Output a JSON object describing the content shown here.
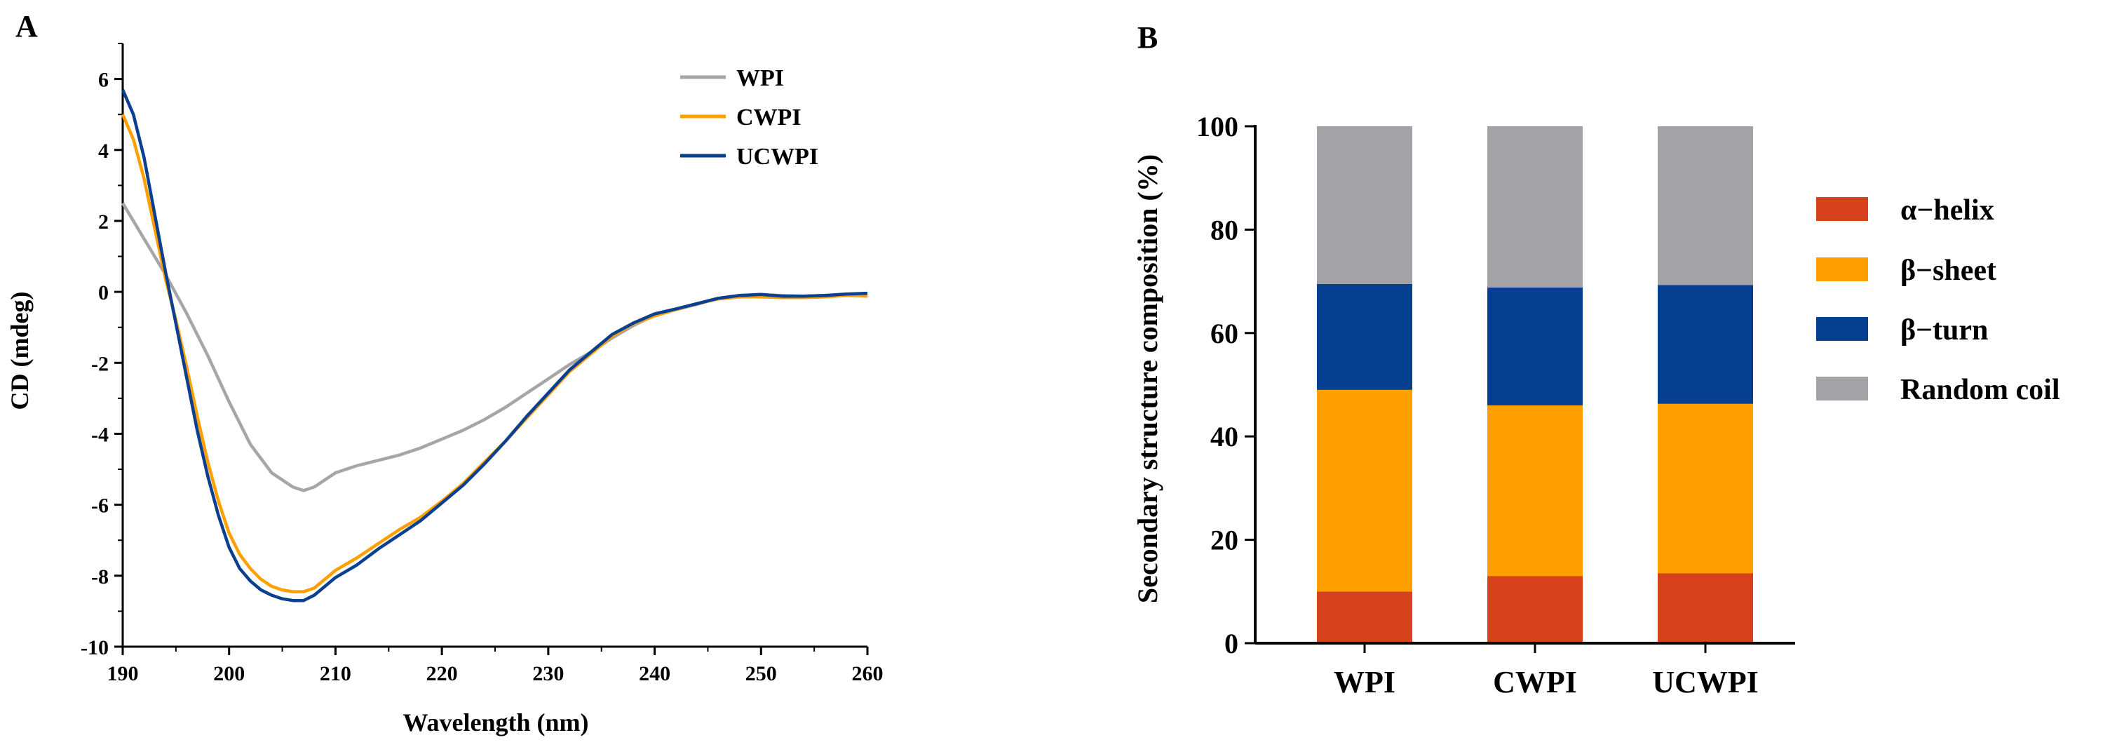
{
  "chart_data": [
    {
      "panel_label": "A",
      "type": "line",
      "xlabel": "Wavelength (nm)",
      "ylabel": "CD (mdeg)",
      "xlim": [
        190,
        260
      ],
      "ylim": [
        -10,
        7
      ],
      "x_ticks": [
        "190",
        "200",
        "210",
        "220",
        "230",
        "240",
        "250",
        "260"
      ],
      "y_ticks": [
        "-10",
        "-8",
        "-6",
        "-4",
        "-2",
        "0",
        "2",
        "4",
        "6"
      ],
      "legend_position": "top-right",
      "series": [
        {
          "name": "WPI",
          "color": "#a6a6a6",
          "x": [
            190,
            192,
            194,
            196,
            198,
            200,
            202,
            204,
            206,
            207,
            208,
            210,
            212,
            214,
            216,
            218,
            220,
            222,
            224,
            226,
            228,
            230,
            232,
            234,
            236,
            238,
            240,
            242,
            244,
            246,
            248,
            250,
            252,
            254,
            256,
            258,
            260
          ],
          "y": [
            2.5,
            1.5,
            0.5,
            -0.6,
            -1.8,
            -3.1,
            -4.3,
            -5.1,
            -5.5,
            -5.6,
            -5.5,
            -5.1,
            -4.9,
            -4.75,
            -4.6,
            -4.4,
            -4.15,
            -3.9,
            -3.6,
            -3.25,
            -2.85,
            -2.45,
            -2.05,
            -1.7,
            -1.3,
            -0.95,
            -0.65,
            -0.5,
            -0.35,
            -0.18,
            -0.1,
            -0.08,
            -0.1,
            -0.12,
            -0.1,
            -0.08,
            -0.08
          ]
        },
        {
          "name": "CWPI",
          "color": "#ff9f00",
          "x": [
            190,
            191,
            192,
            193,
            194,
            195,
            196,
            197,
            198,
            199,
            200,
            201,
            202,
            203,
            204,
            205,
            206,
            207,
            208,
            209,
            210,
            212,
            214,
            216,
            218,
            220,
            222,
            224,
            226,
            228,
            230,
            232,
            234,
            236,
            238,
            240,
            242,
            244,
            246,
            248,
            250,
            252,
            254,
            256,
            258,
            260
          ],
          "y": [
            5.0,
            4.3,
            3.2,
            1.8,
            0.4,
            -0.8,
            -2.1,
            -3.5,
            -4.8,
            -5.9,
            -6.8,
            -7.4,
            -7.8,
            -8.1,
            -8.3,
            -8.4,
            -8.45,
            -8.45,
            -8.35,
            -8.1,
            -7.85,
            -7.5,
            -7.1,
            -6.7,
            -6.35,
            -5.9,
            -5.4,
            -4.8,
            -4.2,
            -3.55,
            -2.9,
            -2.25,
            -1.75,
            -1.25,
            -0.9,
            -0.68,
            -0.5,
            -0.33,
            -0.2,
            -0.14,
            -0.14,
            -0.16,
            -0.16,
            -0.14,
            -0.1,
            -0.12
          ]
        },
        {
          "name": "UCWPI",
          "color": "#0b3f8f",
          "x": [
            190,
            191,
            192,
            193,
            194,
            195,
            196,
            197,
            198,
            199,
            200,
            201,
            202,
            203,
            204,
            205,
            206,
            207,
            208,
            209,
            210,
            212,
            214,
            216,
            218,
            220,
            222,
            224,
            226,
            228,
            230,
            232,
            234,
            236,
            238,
            240,
            242,
            244,
            246,
            248,
            250,
            252,
            254,
            256,
            258,
            260
          ],
          "y": [
            5.7,
            5.0,
            3.8,
            2.2,
            0.6,
            -0.9,
            -2.4,
            -3.9,
            -5.2,
            -6.3,
            -7.2,
            -7.8,
            -8.15,
            -8.4,
            -8.55,
            -8.65,
            -8.7,
            -8.7,
            -8.55,
            -8.3,
            -8.05,
            -7.7,
            -7.25,
            -6.85,
            -6.45,
            -5.95,
            -5.45,
            -4.85,
            -4.2,
            -3.5,
            -2.85,
            -2.2,
            -1.7,
            -1.2,
            -0.88,
            -0.62,
            -0.48,
            -0.33,
            -0.18,
            -0.1,
            -0.07,
            -0.12,
            -0.12,
            -0.1,
            -0.06,
            -0.04
          ]
        }
      ]
    },
    {
      "panel_label": "B",
      "type": "bar",
      "stacked": true,
      "ylabel": "Secondary structure composition (%)",
      "xlabel": "",
      "ylim": [
        0,
        100
      ],
      "y_ticks": [
        "0",
        "20",
        "40",
        "60",
        "80",
        "100"
      ],
      "categories": [
        "WPI",
        "CWPI",
        "UCWPI"
      ],
      "legend_position": "right",
      "series": [
        {
          "name": "α−helix",
          "color": "#d6401a",
          "values": [
            10.0,
            13.0,
            13.5
          ]
        },
        {
          "name": "β−sheet",
          "color": "#ffa000",
          "values": [
            39.0,
            33.0,
            32.8
          ]
        },
        {
          "name": "β−turn",
          "color": "#063f8f",
          "values": [
            20.5,
            22.8,
            23.0
          ]
        },
        {
          "name": "Random coil",
          "color": "#a3a3a7",
          "values": [
            30.5,
            31.2,
            30.7
          ]
        }
      ]
    }
  ]
}
